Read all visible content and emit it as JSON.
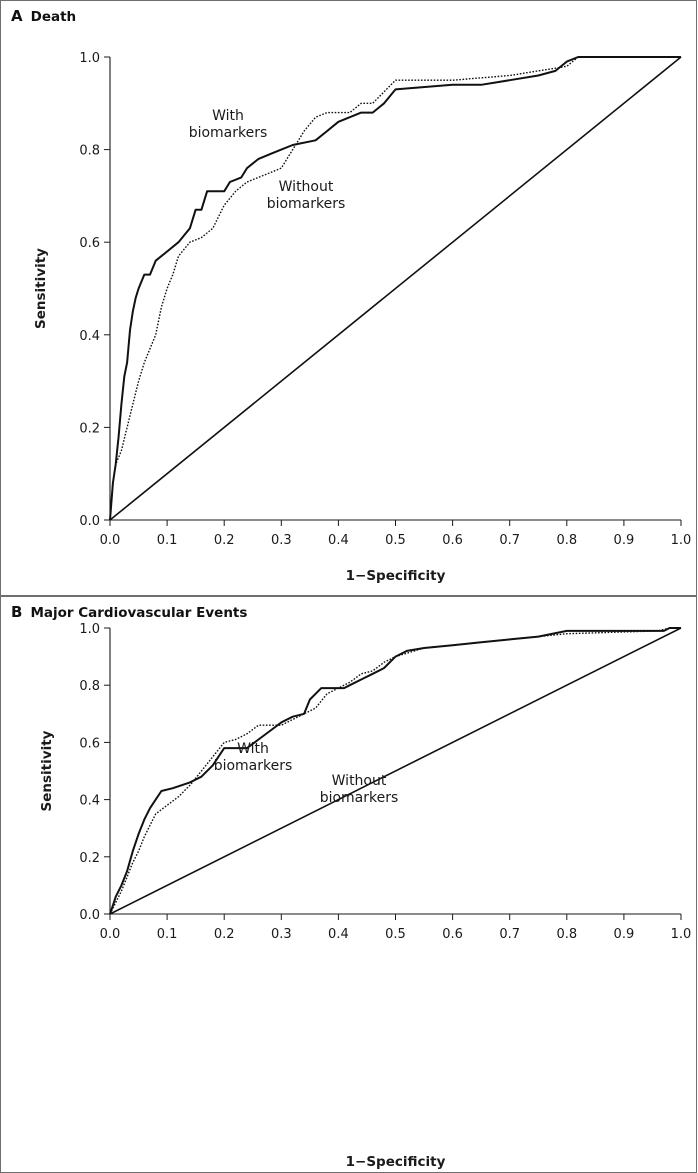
{
  "chart_data": [
    {
      "type": "line",
      "panel_letter": "A",
      "title": "Death",
      "xlabel": "1−Specificity",
      "ylabel": "Sensitivity",
      "xlim": [
        0,
        1
      ],
      "ylim": [
        0,
        1
      ],
      "xticks": [
        "0.0",
        "0.1",
        "0.2",
        "0.3",
        "0.4",
        "0.5",
        "0.6",
        "0.7",
        "0.8",
        "0.9",
        "1.0"
      ],
      "yticks": [
        "0.0",
        "0.2",
        "0.4",
        "0.6",
        "0.8",
        "1.0"
      ],
      "grid": false,
      "series_labels": [
        {
          "lines": [
            "With",
            "biomarkers"
          ]
        },
        {
          "lines": [
            "Without",
            "biomarkers"
          ]
        }
      ],
      "series": [
        {
          "style": "solid",
          "points": [
            [
              0,
              0
            ],
            [
              0.005,
              0.08
            ],
            [
              0.01,
              0.12
            ],
            [
              0.015,
              0.18
            ],
            [
              0.02,
              0.25
            ],
            [
              0.025,
              0.31
            ],
            [
              0.03,
              0.34
            ],
            [
              0.035,
              0.41
            ],
            [
              0.04,
              0.45
            ],
            [
              0.045,
              0.48
            ],
            [
              0.05,
              0.5
            ],
            [
              0.06,
              0.53
            ],
            [
              0.07,
              0.53
            ],
            [
              0.08,
              0.56
            ],
            [
              0.1,
              0.58
            ],
            [
              0.12,
              0.6
            ],
            [
              0.14,
              0.63
            ],
            [
              0.15,
              0.67
            ],
            [
              0.16,
              0.67
            ],
            [
              0.17,
              0.71
            ],
            [
              0.2,
              0.71
            ],
            [
              0.21,
              0.73
            ],
            [
              0.23,
              0.74
            ],
            [
              0.24,
              0.76
            ],
            [
              0.26,
              0.78
            ],
            [
              0.28,
              0.79
            ],
            [
              0.3,
              0.8
            ],
            [
              0.32,
              0.81
            ],
            [
              0.36,
              0.82
            ],
            [
              0.38,
              0.84
            ],
            [
              0.4,
              0.86
            ],
            [
              0.42,
              0.87
            ],
            [
              0.44,
              0.88
            ],
            [
              0.46,
              0.88
            ],
            [
              0.48,
              0.9
            ],
            [
              0.5,
              0.93
            ],
            [
              0.6,
              0.94
            ],
            [
              0.65,
              0.94
            ],
            [
              0.7,
              0.95
            ],
            [
              0.75,
              0.96
            ],
            [
              0.78,
              0.97
            ],
            [
              0.8,
              0.99
            ],
            [
              0.82,
              1
            ],
            [
              0.96,
              1
            ],
            [
              1,
              1
            ]
          ]
        },
        {
          "style": "dotted",
          "points": [
            [
              0,
              0
            ],
            [
              0.005,
              0.08
            ],
            [
              0.01,
              0.12
            ],
            [
              0.02,
              0.15
            ],
            [
              0.03,
              0.2
            ],
            [
              0.04,
              0.25
            ],
            [
              0.05,
              0.3
            ],
            [
              0.06,
              0.34
            ],
            [
              0.07,
              0.37
            ],
            [
              0.08,
              0.4
            ],
            [
              0.09,
              0.46
            ],
            [
              0.1,
              0.5
            ],
            [
              0.11,
              0.53
            ],
            [
              0.12,
              0.57
            ],
            [
              0.14,
              0.6
            ],
            [
              0.16,
              0.61
            ],
            [
              0.18,
              0.63
            ],
            [
              0.2,
              0.68
            ],
            [
              0.22,
              0.71
            ],
            [
              0.24,
              0.73
            ],
            [
              0.26,
              0.74
            ],
            [
              0.28,
              0.75
            ],
            [
              0.3,
              0.76
            ],
            [
              0.32,
              0.8
            ],
            [
              0.34,
              0.84
            ],
            [
              0.36,
              0.87
            ],
            [
              0.38,
              0.88
            ],
            [
              0.42,
              0.88
            ],
            [
              0.44,
              0.9
            ],
            [
              0.46,
              0.9
            ],
            [
              0.5,
              0.95
            ],
            [
              0.6,
              0.95
            ],
            [
              0.7,
              0.96
            ],
            [
              0.75,
              0.97
            ],
            [
              0.8,
              0.98
            ],
            [
              0.82,
              1
            ],
            [
              0.96,
              1
            ],
            [
              1,
              1
            ]
          ]
        },
        {
          "style": "solid",
          "points": [
            [
              0,
              0
            ],
            [
              1,
              1
            ]
          ]
        }
      ]
    },
    {
      "type": "line",
      "panel_letter": "B",
      "title": "Major Cardiovascular Events",
      "xlabel": "1−Specificity",
      "ylabel": "Sensitivity",
      "xlim": [
        0,
        1
      ],
      "ylim": [
        0,
        1
      ],
      "xticks": [
        "0.0",
        "0.1",
        "0.2",
        "0.3",
        "0.4",
        "0.5",
        "0.6",
        "0.7",
        "0.8",
        "0.9",
        "1.0"
      ],
      "yticks": [
        "0.0",
        "0.2",
        "0.4",
        "0.6",
        "0.8",
        "1.0"
      ],
      "grid": false,
      "series_labels": [
        {
          "lines": [
            "With",
            "biomarkers"
          ]
        },
        {
          "lines": [
            "Without",
            "biomarkers"
          ]
        }
      ],
      "series": [
        {
          "style": "solid",
          "points": [
            [
              0,
              0
            ],
            [
              0.005,
              0.03
            ],
            [
              0.01,
              0.06
            ],
            [
              0.02,
              0.1
            ],
            [
              0.03,
              0.15
            ],
            [
              0.04,
              0.22
            ],
            [
              0.05,
              0.28
            ],
            [
              0.06,
              0.33
            ],
            [
              0.07,
              0.37
            ],
            [
              0.08,
              0.4
            ],
            [
              0.09,
              0.43
            ],
            [
              0.11,
              0.44
            ],
            [
              0.14,
              0.46
            ],
            [
              0.16,
              0.48
            ],
            [
              0.18,
              0.52
            ],
            [
              0.2,
              0.58
            ],
            [
              0.24,
              0.58
            ],
            [
              0.26,
              0.61
            ],
            [
              0.28,
              0.64
            ],
            [
              0.3,
              0.67
            ],
            [
              0.32,
              0.69
            ],
            [
              0.34,
              0.7
            ],
            [
              0.35,
              0.75
            ],
            [
              0.36,
              0.77
            ],
            [
              0.37,
              0.79
            ],
            [
              0.41,
              0.79
            ],
            [
              0.42,
              0.8
            ],
            [
              0.44,
              0.82
            ],
            [
              0.46,
              0.84
            ],
            [
              0.48,
              0.86
            ],
            [
              0.5,
              0.9
            ],
            [
              0.52,
              0.92
            ],
            [
              0.55,
              0.93
            ],
            [
              0.6,
              0.94
            ],
            [
              0.65,
              0.95
            ],
            [
              0.7,
              0.96
            ],
            [
              0.75,
              0.97
            ],
            [
              0.8,
              0.99
            ],
            [
              0.97,
              0.99
            ],
            [
              0.98,
              1
            ],
            [
              1,
              1
            ]
          ]
        },
        {
          "style": "dotted",
          "points": [
            [
              0,
              0
            ],
            [
              0.01,
              0.04
            ],
            [
              0.02,
              0.08
            ],
            [
              0.03,
              0.13
            ],
            [
              0.04,
              0.18
            ],
            [
              0.05,
              0.22
            ],
            [
              0.06,
              0.27
            ],
            [
              0.07,
              0.31
            ],
            [
              0.08,
              0.35
            ],
            [
              0.1,
              0.38
            ],
            [
              0.12,
              0.41
            ],
            [
              0.14,
              0.45
            ],
            [
              0.16,
              0.5
            ],
            [
              0.18,
              0.55
            ],
            [
              0.2,
              0.6
            ],
            [
              0.22,
              0.61
            ],
            [
              0.24,
              0.63
            ],
            [
              0.26,
              0.66
            ],
            [
              0.3,
              0.66
            ],
            [
              0.32,
              0.68
            ],
            [
              0.34,
              0.7
            ],
            [
              0.36,
              0.72
            ],
            [
              0.38,
              0.77
            ],
            [
              0.4,
              0.79
            ],
            [
              0.42,
              0.81
            ],
            [
              0.44,
              0.84
            ],
            [
              0.46,
              0.85
            ],
            [
              0.48,
              0.88
            ],
            [
              0.5,
              0.9
            ],
            [
              0.55,
              0.93
            ],
            [
              0.6,
              0.94
            ],
            [
              0.65,
              0.95
            ],
            [
              0.7,
              0.96
            ],
            [
              0.75,
              0.97
            ],
            [
              0.8,
              0.98
            ],
            [
              0.96,
              0.99
            ],
            [
              0.98,
              1
            ],
            [
              1,
              1
            ]
          ]
        },
        {
          "style": "solid",
          "points": [
            [
              0,
              0
            ],
            [
              1,
              1
            ]
          ]
        }
      ]
    }
  ]
}
